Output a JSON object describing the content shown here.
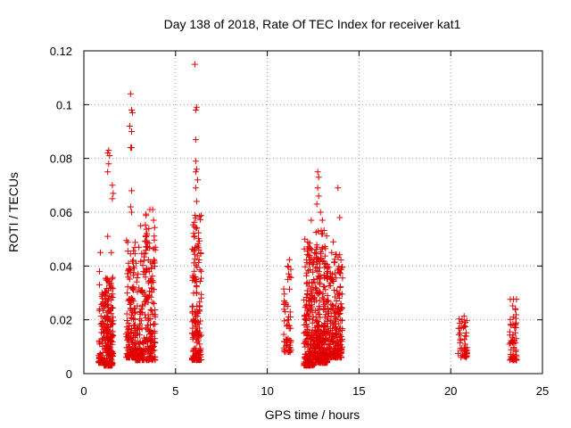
{
  "chart_data": {
    "type": "scatter",
    "title": "Day 138 of 2018, Rate Of TEC Index for receiver kat1",
    "xlabel": "GPS time / hours",
    "ylabel": "ROTI / TECUs",
    "xlim": [
      0,
      25
    ],
    "ylim": [
      0,
      0.12
    ],
    "x_ticks": [
      "0",
      "5",
      "10",
      "15",
      "20",
      "25"
    ],
    "y_ticks": [
      "0",
      "0.02",
      "0.04",
      "0.06",
      "0.08",
      "0.1",
      "0.12"
    ],
    "x_tick_values": [
      0,
      5,
      10,
      15,
      20,
      25
    ],
    "y_tick_values": [
      0,
      0.02,
      0.04,
      0.06,
      0.08,
      0.1,
      0.12
    ],
    "grid": true,
    "marker": "+",
    "marker_color": "#e00000",
    "clusters": [
      {
        "x_range": [
          0.8,
          1.1
        ],
        "y_range": [
          0.004,
          0.03
        ],
        "count": 60,
        "outliers": [
          [
            0.85,
            0.038
          ],
          [
            0.9,
            0.045
          ],
          [
            0.85,
            0.033
          ]
        ]
      },
      {
        "x_range": [
          1.1,
          1.6
        ],
        "y_range": [
          0.003,
          0.036
        ],
        "count": 220,
        "outliers": [
          [
            1.3,
            0.082
          ],
          [
            1.35,
            0.083
          ],
          [
            1.4,
            0.081
          ],
          [
            1.35,
            0.078
          ],
          [
            1.3,
            0.075
          ],
          [
            1.55,
            0.07
          ],
          [
            1.6,
            0.067
          ],
          [
            1.55,
            0.065
          ],
          [
            1.3,
            0.051
          ],
          [
            1.5,
            0.045
          ]
        ]
      },
      {
        "x_range": [
          2.3,
          2.8
        ],
        "y_range": [
          0.006,
          0.05
        ],
        "count": 150,
        "outliers": [
          [
            2.55,
            0.104
          ],
          [
            2.6,
            0.098
          ],
          [
            2.65,
            0.097
          ],
          [
            2.5,
            0.092
          ],
          [
            2.6,
            0.09
          ],
          [
            2.55,
            0.084
          ],
          [
            2.6,
            0.084
          ],
          [
            2.6,
            0.068
          ],
          [
            2.55,
            0.062
          ],
          [
            2.6,
            0.06
          ]
        ]
      },
      {
        "x_range": [
          2.8,
          3.3
        ],
        "y_range": [
          0.005,
          0.045
        ],
        "count": 110,
        "outliers": [
          [
            3.1,
            0.055
          ],
          [
            3.0,
            0.047
          ]
        ]
      },
      {
        "x_range": [
          3.3,
          3.9
        ],
        "y_range": [
          0.005,
          0.06
        ],
        "count": 170,
        "outliers": [
          [
            3.6,
            0.061
          ],
          [
            3.75,
            0.061
          ],
          [
            3.8,
            0.057
          ]
        ]
      },
      {
        "x_range": [
          5.9,
          6.4
        ],
        "y_range": [
          0.005,
          0.06
        ],
        "count": 160,
        "outliers": [
          [
            6.05,
            0.115
          ],
          [
            6.15,
            0.099
          ],
          [
            6.1,
            0.098
          ],
          [
            6.1,
            0.087
          ],
          [
            6.1,
            0.079
          ],
          [
            6.15,
            0.076
          ],
          [
            6.1,
            0.075
          ],
          [
            6.2,
            0.072
          ],
          [
            6.1,
            0.069
          ],
          [
            6.15,
            0.064
          ]
        ]
      },
      {
        "x_range": [
          10.9,
          11.3
        ],
        "y_range": [
          0.008,
          0.045
        ],
        "count": 60,
        "outliers": []
      },
      {
        "x_range": [
          12.0,
          12.6
        ],
        "y_range": [
          0.003,
          0.05
        ],
        "count": 220,
        "outliers": [
          [
            12.4,
            0.057
          ],
          [
            12.2,
            0.049
          ]
        ]
      },
      {
        "x_range": [
          12.6,
          13.3
        ],
        "y_range": [
          0.004,
          0.055
        ],
        "count": 280,
        "outliers": [
          [
            12.75,
            0.075
          ],
          [
            12.8,
            0.073
          ],
          [
            12.75,
            0.069
          ],
          [
            12.8,
            0.066
          ],
          [
            12.7,
            0.063
          ],
          [
            12.9,
            0.06
          ],
          [
            13.0,
            0.057
          ],
          [
            12.95,
            0.052
          ]
        ]
      },
      {
        "x_range": [
          13.3,
          13.7
        ],
        "y_range": [
          0.006,
          0.045
        ],
        "count": 110,
        "outliers": [
          [
            13.6,
            0.049
          ]
        ]
      },
      {
        "x_range": [
          13.7,
          14.1
        ],
        "y_range": [
          0.006,
          0.047
        ],
        "count": 120,
        "outliers": [
          [
            13.85,
            0.069
          ],
          [
            13.95,
            0.058
          ]
        ]
      },
      {
        "x_range": [
          20.4,
          20.9
        ],
        "y_range": [
          0.006,
          0.022
        ],
        "count": 50,
        "outliers": []
      },
      {
        "x_range": [
          23.2,
          23.6
        ],
        "y_range": [
          0.005,
          0.029
        ],
        "count": 65,
        "outliers": []
      }
    ]
  }
}
